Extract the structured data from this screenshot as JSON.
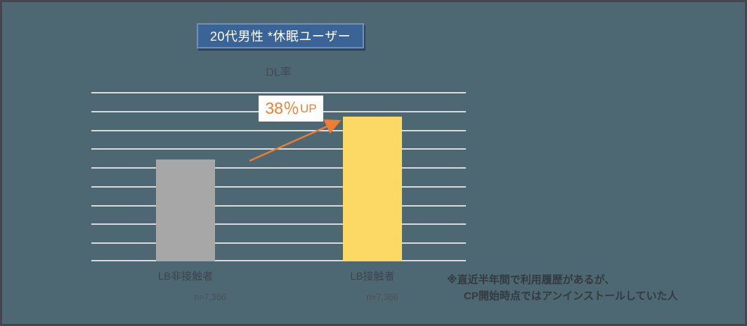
{
  "slide": {
    "background_color": "#4D6872",
    "border_color": "#43474D"
  },
  "header": {
    "title": "20代男性 *休眠ユーザー",
    "box_fill": "#3A6496",
    "box_border": "#6F90BA",
    "text_color": "#FFFFFF"
  },
  "chart_data": {
    "type": "bar",
    "title": "DL率",
    "categories": [
      "LB非接触者",
      "LB接触者"
    ],
    "sample_sizes": [
      "n=7,366",
      "n=7,366"
    ],
    "values_pct_of_plot_height": [
      60,
      85.5
    ],
    "bar_colors": [
      "#A7A7A7",
      "#FCD964"
    ],
    "gridline_count": 10,
    "gridline_color": "#DBDBDB",
    "value_axis_labels_visible": false,
    "legend": "none",
    "annotation": {
      "value": "38％",
      "suffix": "UP",
      "color": "#ED7D31",
      "box_fill": "#FFFFFF",
      "arrow_color": "#ED7D31"
    }
  },
  "footnote": {
    "line1": "※直近半年間で利用履歴があるが、",
    "line2": "CP開始時点ではアンインストールしていた人"
  }
}
